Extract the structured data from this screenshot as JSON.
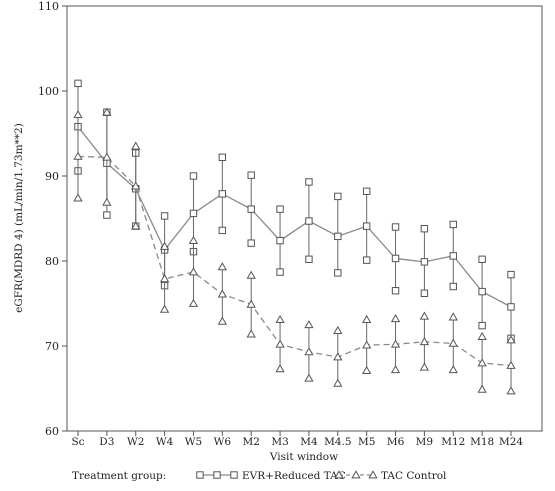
{
  "chart_data": {
    "type": "line",
    "title": "",
    "xlabel": "Visit window",
    "ylabel": "eGFR(MDRD 4) (mL/min/1.73m**2)",
    "ylim": [
      60,
      110
    ],
    "yticks": [
      60,
      70,
      80,
      90,
      100,
      110
    ],
    "grid": false,
    "categories": [
      "Sc",
      "D3",
      "W2",
      "W4",
      "W5",
      "W6",
      "M2",
      "M3",
      "M4",
      "M4.5",
      "M5",
      "M6",
      "M9",
      "M12",
      "M18",
      "M24"
    ],
    "legend": {
      "title": "Treatment group:",
      "placement": "bottom"
    },
    "series": [
      {
        "name": "EVR+Reduced TAC",
        "marker": "square",
        "line": "solid",
        "color": "#8a8a8a",
        "values": [
          95.8,
          91.5,
          88.5,
          81.3,
          85.6,
          87.9,
          86.1,
          82.4,
          84.7,
          82.9,
          84.1,
          80.3,
          79.9,
          80.6,
          76.4,
          74.6
        ],
        "upper": [
          100.9,
          97.5,
          92.7,
          85.3,
          90.0,
          92.2,
          90.1,
          86.1,
          89.3,
          87.6,
          88.2,
          84.0,
          83.8,
          84.3,
          80.2,
          78.4
        ],
        "lower": [
          90.6,
          85.4,
          84.1,
          77.1,
          81.1,
          83.6,
          82.1,
          78.7,
          80.2,
          78.6,
          80.1,
          76.5,
          76.2,
          77.0,
          72.4,
          70.9
        ]
      },
      {
        "name": "TAC Control",
        "marker": "triangle",
        "line": "dashed",
        "color": "#8a8a8a",
        "values": [
          92.3,
          92.2,
          88.8,
          77.9,
          78.7,
          76.1,
          74.9,
          70.2,
          69.3,
          68.7,
          70.1,
          70.2,
          70.5,
          70.3,
          68.0,
          67.7
        ],
        "upper": [
          97.2,
          97.5,
          93.5,
          81.7,
          82.4,
          79.3,
          78.3,
          73.1,
          72.5,
          71.8,
          73.1,
          73.2,
          73.5,
          73.4,
          71.1,
          70.7
        ],
        "lower": [
          87.4,
          86.9,
          84.1,
          74.3,
          75.0,
          72.9,
          71.4,
          67.3,
          66.2,
          65.6,
          67.1,
          67.2,
          67.5,
          67.2,
          64.9,
          64.7
        ]
      }
    ]
  }
}
